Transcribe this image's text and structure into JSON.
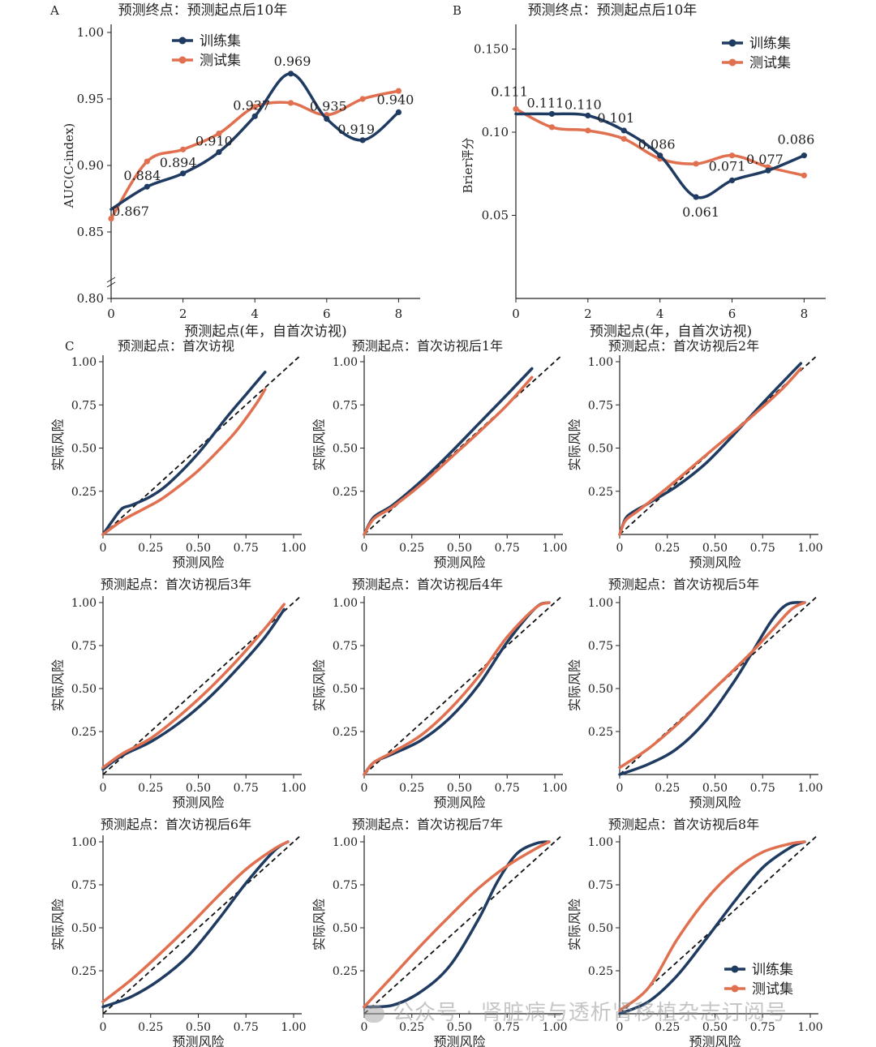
{
  "colors": {
    "train": "#1f3b61",
    "test": "#e07050",
    "ref": "#111111",
    "axis": "#222222"
  },
  "panel_A": {
    "letter": "A",
    "title": "预测终点：预测起点后10年",
    "xlabel": "预测起点(年，自首次访视)",
    "ylabel": "AUC(C-index)",
    "xticks": [
      "0",
      "2",
      "4",
      "6",
      "8"
    ],
    "yticks": [
      "0.80",
      "0.85",
      "0.90",
      "0.95",
      "1.00"
    ],
    "legend": [
      "训练集",
      "测试集"
    ]
  },
  "panel_B": {
    "letter": "B",
    "title": "预测终点：预测起点后10年",
    "xlabel": "预测起点(年，自首次访视)",
    "ylabel": "Brier评分",
    "xticks": [
      "0",
      "2",
      "4",
      "6",
      "8"
    ],
    "yticks": [
      "0.05",
      "0.10",
      "0.150"
    ],
    "legend": [
      "训练集",
      "测试集"
    ]
  },
  "panel_C": {
    "letter": "C",
    "xlabel": "预测风险",
    "ylabel": "实际风险",
    "xticks": [
      "0",
      "0.25",
      "0.50",
      "0.75",
      "1.00"
    ],
    "yticks": [
      "0.25",
      "0.50",
      "0.75",
      "1.00"
    ],
    "titles": [
      "预测起点：首次访视",
      "预测起点：首次访视后1年",
      "预测起点：首次访视后2年",
      "预测起点：首次访视后3年",
      "预测起点：首次访视后4年",
      "预测起点：首次访视后5年",
      "预测起点：首次访视后6年",
      "预测起点：首次访视后7年",
      "预测起点：首次访视后8年"
    ],
    "legend": [
      "训练集",
      "测试集"
    ]
  },
  "watermark": "公众号 · 肾脏病与透析肾移植杂志订阅号",
  "chart_data": [
    {
      "type": "line",
      "title": "预测终点：预测起点后10年",
      "xlabel": "预测起点(年，自首次访视)",
      "ylabel": "AUC(C-index)",
      "xlim": [
        0,
        8.6
      ],
      "ylim": [
        0.8,
        1.0
      ],
      "x": [
        0,
        1,
        2,
        3,
        4,
        5,
        6,
        7,
        8
      ],
      "series": [
        {
          "name": "训练集",
          "values": [
            0.867,
            0.884,
            0.894,
            0.91,
            0.937,
            0.969,
            0.935,
            0.919,
            0.94
          ]
        },
        {
          "name": "测试集",
          "values": [
            0.86,
            0.903,
            0.912,
            0.924,
            0.944,
            0.947,
            0.938,
            0.95,
            0.956
          ]
        }
      ],
      "data_labels": [
        "0.867",
        "0.884",
        "0.894",
        "0.910",
        "0.937",
        "0.969",
        "0.935",
        "0.919",
        "0.940"
      ]
    },
    {
      "type": "line",
      "title": "预测终点：预测起点后10年",
      "xlabel": "预测起点(年，自首次访视)",
      "ylabel": "Brier评分",
      "xlim": [
        0,
        8.6
      ],
      "ylim": [
        0.0,
        0.16
      ],
      "x": [
        0,
        1,
        2,
        3,
        4,
        5,
        6,
        7,
        8
      ],
      "series": [
        {
          "name": "训练集",
          "values": [
            0.111,
            0.111,
            0.11,
            0.101,
            0.086,
            0.061,
            0.071,
            0.077,
            0.086
          ]
        },
        {
          "name": "测试集",
          "values": [
            0.114,
            0.103,
            0.101,
            0.096,
            0.084,
            0.081,
            0.086,
            0.079,
            0.074
          ]
        }
      ],
      "data_labels": [
        "0.111",
        "0.111",
        "0.110",
        "0.101",
        "0.086",
        "0.061",
        "0.071",
        "0.077",
        "0.086"
      ]
    },
    {
      "type": "line",
      "title": "预测起点：首次访视",
      "xlabel": "预测风险",
      "ylabel": "实际风险",
      "xlim": [
        0,
        1
      ],
      "ylim": [
        0,
        1
      ],
      "series": [
        {
          "name": "训练集",
          "x": [
            0.0,
            0.05,
            0.1,
            0.15,
            0.25,
            0.35,
            0.5,
            0.65,
            0.75,
            0.85
          ],
          "values": [
            0.0,
            0.08,
            0.15,
            0.17,
            0.22,
            0.3,
            0.47,
            0.68,
            0.81,
            0.94
          ]
        },
        {
          "name": "测试集",
          "x": [
            0.0,
            0.1,
            0.2,
            0.3,
            0.4,
            0.5,
            0.6,
            0.7,
            0.8,
            0.85
          ],
          "values": [
            0.0,
            0.08,
            0.14,
            0.2,
            0.28,
            0.37,
            0.48,
            0.6,
            0.75,
            0.84
          ]
        }
      ]
    },
    {
      "type": "line",
      "title": "预测起点：首次访视后1年",
      "xlabel": "预测风险",
      "ylabel": "实际风险",
      "xlim": [
        0,
        1
      ],
      "ylim": [
        0,
        1
      ],
      "series": [
        {
          "name": "训练集",
          "x": [
            0.0,
            0.05,
            0.15,
            0.3,
            0.45,
            0.6,
            0.75,
            0.88
          ],
          "values": [
            0.0,
            0.1,
            0.17,
            0.31,
            0.47,
            0.64,
            0.81,
            0.96
          ]
        },
        {
          "name": "测试集",
          "x": [
            0.0,
            0.05,
            0.15,
            0.3,
            0.45,
            0.6,
            0.75,
            0.88
          ],
          "values": [
            0.0,
            0.09,
            0.16,
            0.29,
            0.44,
            0.59,
            0.75,
            0.91
          ]
        }
      ]
    },
    {
      "type": "line",
      "title": "预测起点：首次访视后2年",
      "xlabel": "预测风险",
      "ylabel": "实际风险",
      "xlim": [
        0,
        1
      ],
      "ylim": [
        0,
        1
      ],
      "series": [
        {
          "name": "训练集",
          "x": [
            0.0,
            0.03,
            0.07,
            0.15,
            0.3,
            0.45,
            0.6,
            0.75,
            0.88,
            0.95
          ],
          "values": [
            0.0,
            0.09,
            0.13,
            0.18,
            0.28,
            0.41,
            0.58,
            0.76,
            0.91,
            0.99
          ]
        },
        {
          "name": "测试集",
          "x": [
            0.0,
            0.03,
            0.1,
            0.25,
            0.4,
            0.55,
            0.7,
            0.85,
            0.95
          ],
          "values": [
            0.0,
            0.08,
            0.14,
            0.27,
            0.41,
            0.55,
            0.69,
            0.84,
            0.96
          ]
        }
      ]
    },
    {
      "type": "line",
      "title": "预测起点：首次访视后3年",
      "xlabel": "预测风险",
      "ylabel": "实际风险",
      "xlim": [
        0,
        1
      ],
      "ylim": [
        0,
        1
      ],
      "series": [
        {
          "name": "训练集",
          "x": [
            0.0,
            0.1,
            0.25,
            0.4,
            0.55,
            0.7,
            0.85,
            0.95
          ],
          "values": [
            0.03,
            0.11,
            0.19,
            0.3,
            0.44,
            0.61,
            0.8,
            0.96
          ]
        },
        {
          "name": "测试集",
          "x": [
            0.0,
            0.1,
            0.25,
            0.4,
            0.55,
            0.7,
            0.85,
            0.95
          ],
          "values": [
            0.04,
            0.12,
            0.21,
            0.34,
            0.49,
            0.66,
            0.85,
            0.99
          ]
        }
      ]
    },
    {
      "type": "line",
      "title": "预测起点：首次访视后4年",
      "xlabel": "预测风险",
      "ylabel": "实际风险",
      "xlim": [
        0,
        1
      ],
      "ylim": [
        0,
        1
      ],
      "series": [
        {
          "name": "训练集",
          "x": [
            0.0,
            0.05,
            0.15,
            0.3,
            0.45,
            0.6,
            0.75,
            0.9,
            0.97
          ],
          "values": [
            0.0,
            0.07,
            0.12,
            0.2,
            0.33,
            0.52,
            0.77,
            0.97,
            1.0
          ]
        },
        {
          "name": "测试集",
          "x": [
            0.0,
            0.05,
            0.15,
            0.3,
            0.45,
            0.6,
            0.75,
            0.9,
            0.97
          ],
          "values": [
            0.0,
            0.07,
            0.13,
            0.23,
            0.38,
            0.57,
            0.8,
            0.97,
            1.0
          ]
        }
      ]
    },
    {
      "type": "line",
      "title": "预测起点：首次访视后5年",
      "xlabel": "预测风险",
      "ylabel": "实际风险",
      "xlim": [
        0,
        1
      ],
      "ylim": [
        0,
        1
      ],
      "series": [
        {
          "name": "训练集",
          "x": [
            0.0,
            0.15,
            0.3,
            0.45,
            0.6,
            0.7,
            0.8,
            0.88,
            0.97
          ],
          "values": [
            0.0,
            0.06,
            0.15,
            0.31,
            0.54,
            0.72,
            0.9,
            0.99,
            1.0
          ]
        },
        {
          "name": "测试集",
          "x": [
            0.0,
            0.15,
            0.3,
            0.45,
            0.6,
            0.7,
            0.8,
            0.9,
            0.97
          ],
          "values": [
            0.04,
            0.15,
            0.29,
            0.45,
            0.61,
            0.72,
            0.84,
            0.96,
            1.0
          ]
        }
      ]
    },
    {
      "type": "line",
      "title": "预测起点：首次访视后6年",
      "xlabel": "预测风险",
      "ylabel": "实际风险",
      "xlim": [
        0,
        1
      ],
      "ylim": [
        0,
        1
      ],
      "series": [
        {
          "name": "训练集",
          "x": [
            0.0,
            0.15,
            0.3,
            0.45,
            0.6,
            0.75,
            0.9,
            0.97
          ],
          "values": [
            0.04,
            0.1,
            0.2,
            0.34,
            0.54,
            0.76,
            0.95,
            1.0
          ]
        },
        {
          "name": "测试集",
          "x": [
            0.0,
            0.15,
            0.3,
            0.45,
            0.6,
            0.75,
            0.9,
            0.97
          ],
          "values": [
            0.07,
            0.2,
            0.35,
            0.51,
            0.68,
            0.84,
            0.96,
            1.0
          ]
        }
      ]
    },
    {
      "type": "line",
      "title": "预测起点：首次访视后7年",
      "xlabel": "预测风险",
      "ylabel": "实际风险",
      "xlim": [
        0,
        1
      ],
      "ylim": [
        0,
        1
      ],
      "series": [
        {
          "name": "训练集",
          "x": [
            0.0,
            0.15,
            0.3,
            0.45,
            0.6,
            0.7,
            0.8,
            0.9,
            0.97
          ],
          "values": [
            0.04,
            0.05,
            0.13,
            0.28,
            0.55,
            0.77,
            0.93,
            0.99,
            1.0
          ]
        },
        {
          "name": "测试集",
          "x": [
            0.0,
            0.15,
            0.3,
            0.45,
            0.6,
            0.75,
            0.9,
            0.97
          ],
          "values": [
            0.04,
            0.22,
            0.4,
            0.57,
            0.73,
            0.86,
            0.96,
            1.0
          ]
        }
      ]
    },
    {
      "type": "line",
      "title": "预测起点：首次访视后8年",
      "xlabel": "预测风险",
      "ylabel": "实际风险",
      "xlim": [
        0,
        1
      ],
      "ylim": [
        0,
        1
      ],
      "series": [
        {
          "name": "训练集",
          "x": [
            0.0,
            0.15,
            0.3,
            0.45,
            0.6,
            0.75,
            0.9,
            0.97
          ],
          "values": [
            0.0,
            0.07,
            0.22,
            0.43,
            0.65,
            0.85,
            0.97,
            1.0
          ]
        },
        {
          "name": "测试集",
          "x": [
            0.0,
            0.15,
            0.3,
            0.45,
            0.6,
            0.75,
            0.9,
            0.97
          ],
          "values": [
            0.02,
            0.15,
            0.43,
            0.66,
            0.83,
            0.94,
            0.99,
            1.0
          ]
        }
      ]
    }
  ]
}
